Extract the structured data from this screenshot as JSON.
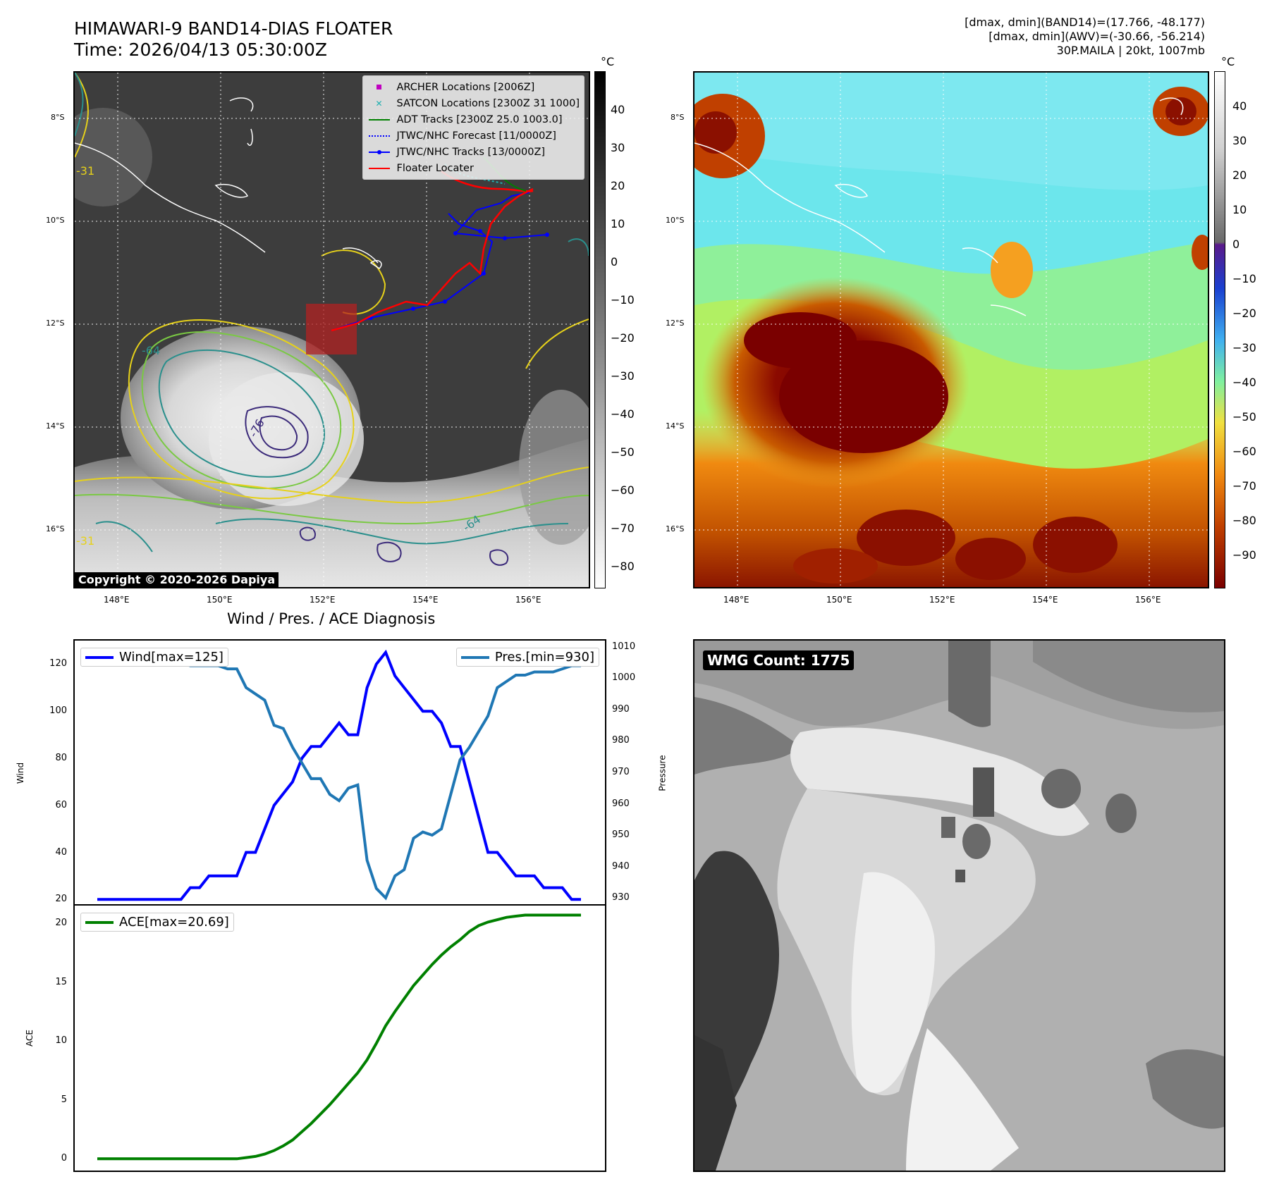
{
  "header": {
    "title_line1": "HIMAWARI-9 BAND14-DIAS FLOATER",
    "title_line2": "Time: 2026/04/13 05:30:00Z",
    "info_line1": "[dmax, dmin](BAND14)=(17.766, -48.177)",
    "info_line2": "[dmax, dmin](AWV)=(-30.66, -56.214)",
    "info_line3": "30P.MAILA | 20kt, 1007mb"
  },
  "map": {
    "lat_labels": [
      "8°S",
      "10°S",
      "12°S",
      "14°S",
      "16°S"
    ],
    "lon_labels": [
      "148°E",
      "150°E",
      "152°E",
      "154°E",
      "156°E"
    ],
    "copyright": "Copyright © 2020-2026 Dapiya",
    "contour_labels": [
      "-64",
      "-76",
      "-64",
      "-31",
      "-31"
    ],
    "legend": [
      {
        "label": "ARCHER Locations [2006Z]",
        "color": "#c000c0",
        "symbol": "square"
      },
      {
        "label": "SATCON Locations [2300Z 31 1000]",
        "color": "#20b0b0",
        "symbol": "x"
      },
      {
        "label": "ADT Tracks [2300Z 25.0 1003.0]",
        "color": "#008000",
        "symbol": "line"
      },
      {
        "label": "JTWC/NHC Forecast [11/0000Z]",
        "color": "#0000ff",
        "symbol": "dotted"
      },
      {
        "label": "JTWC/NHC Tracks [13/0000Z]",
        "color": "#0000ff",
        "symbol": "line-dot"
      },
      {
        "label": "Floater Locater",
        "color": "#ff0000",
        "symbol": "line"
      }
    ]
  },
  "colorbar1": {
    "unit": "°C",
    "ticks": [
      "40",
      "30",
      "20",
      "10",
      "0",
      "−10",
      "−20",
      "−30",
      "−40",
      "−50",
      "−60",
      "−70",
      "−80"
    ]
  },
  "colorbar2": {
    "unit": "°C",
    "ticks": [
      "40",
      "30",
      "20",
      "10",
      "0",
      "−10",
      "−20",
      "−30",
      "−40",
      "−50",
      "−60",
      "−70",
      "−80",
      "−90"
    ]
  },
  "diag": {
    "title": "Wind / Pres. / ACE Diagnosis",
    "wind_axis_label": "Wind",
    "pres_axis_label": "Pressure",
    "ace_axis_label": "ACE",
    "wind_ticks": [
      "120",
      "100",
      "80",
      "60",
      "40",
      "20"
    ],
    "pres_ticks": [
      "1010",
      "1000",
      "990",
      "980",
      "970",
      "960",
      "950",
      "940",
      "930"
    ],
    "ace_ticks": [
      "20",
      "15",
      "10",
      "5",
      "0"
    ],
    "wind_legend": "Wind[max=125]",
    "pres_legend": "Pres.[min=930]",
    "ace_legend": "ACE[max=20.69]"
  },
  "wmg": {
    "label": "WMG Count: 1775"
  },
  "chart_data": [
    {
      "type": "line",
      "title": "Wind / Pres. / ACE Diagnosis",
      "ylabel": "Wind",
      "ylim": [
        18,
        130
      ],
      "series": [
        {
          "name": "Wind[max=125]",
          "color": "#0000ff",
          "values": [
            20,
            20,
            20,
            20,
            20,
            20,
            20,
            20,
            20,
            20,
            25,
            25,
            30,
            30,
            30,
            30,
            40,
            40,
            50,
            60,
            65,
            70,
            80,
            85,
            85,
            90,
            95,
            90,
            90,
            110,
            120,
            125,
            115,
            110,
            105,
            100,
            100,
            95,
            85,
            85,
            70,
            55,
            40,
            40,
            35,
            30,
            30,
            30,
            25,
            25,
            25,
            20,
            20
          ]
        }
      ]
    },
    {
      "type": "line",
      "ylabel": "Pressure",
      "ylim": [
        928,
        1012
      ],
      "series": [
        {
          "name": "Pres.[min=930]",
          "color": "#1f77b4",
          "values": [
            1007,
            1007,
            1007,
            1007,
            1006,
            1006,
            1006,
            1005,
            1005,
            1005,
            1004,
            1004,
            1004,
            1004,
            1003,
            1003,
            997,
            995,
            993,
            985,
            984,
            978,
            973,
            968,
            968,
            963,
            961,
            965,
            966,
            942,
            933,
            930,
            937,
            939,
            949,
            951,
            950,
            952,
            963,
            974,
            978,
            983,
            988,
            997,
            999,
            1001,
            1001,
            1002,
            1002,
            1002,
            1003,
            1004,
            1004
          ]
        }
      ]
    },
    {
      "type": "line",
      "ylabel": "ACE",
      "ylim": [
        -1,
        21.5
      ],
      "series": [
        {
          "name": "ACE[max=20.69]",
          "color": "#008000",
          "values": [
            0,
            0,
            0,
            0,
            0,
            0,
            0,
            0,
            0,
            0,
            0,
            0,
            0,
            0,
            0,
            0,
            0.1,
            0.2,
            0.4,
            0.7,
            1.1,
            1.6,
            2.3,
            3.0,
            3.8,
            4.6,
            5.5,
            6.4,
            7.3,
            8.4,
            9.8,
            11.3,
            12.5,
            13.6,
            14.7,
            15.6,
            16.5,
            17.3,
            18.0,
            18.6,
            19.3,
            19.8,
            20.1,
            20.3,
            20.5,
            20.6,
            20.69,
            20.69,
            20.69,
            20.69,
            20.69,
            20.69,
            20.69
          ]
        }
      ]
    }
  ]
}
